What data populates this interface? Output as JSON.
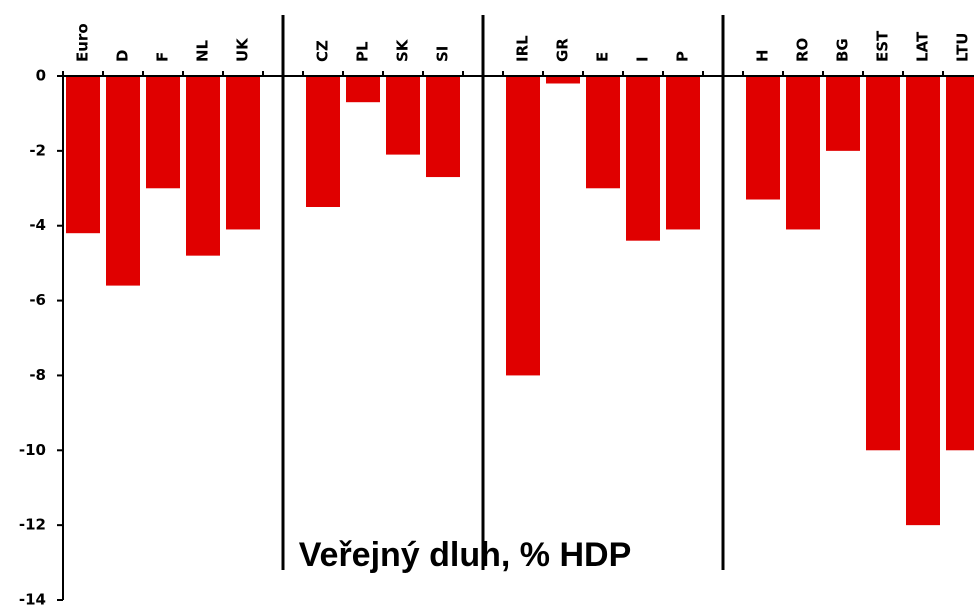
{
  "chart_data": {
    "type": "bar",
    "title": "Veřejný dluh, % HDP",
    "categories": [
      "Euro",
      "D",
      "F",
      "NL",
      "UK",
      null,
      "CZ",
      "PL",
      "SK",
      "SI",
      null,
      "IRL",
      "GR",
      "E",
      "I",
      "P",
      null,
      "H",
      "RO",
      "BG",
      "EST",
      "LAT",
      "LTU"
    ],
    "values": [
      -4.2,
      -5.6,
      -3.0,
      -4.8,
      -4.1,
      null,
      -3.5,
      -0.7,
      -2.1,
      -2.7,
      null,
      -8.0,
      -0.2,
      -3.0,
      -4.4,
      -4.1,
      null,
      -3.3,
      -4.1,
      -2.0,
      -10.0,
      -12.0,
      -10.0
    ],
    "color": "#e00000",
    "ylim": [
      -14,
      0
    ],
    "yticks": [
      -14,
      -12,
      -10,
      -8,
      -6,
      -4,
      -2,
      0
    ],
    "grid": false
  }
}
